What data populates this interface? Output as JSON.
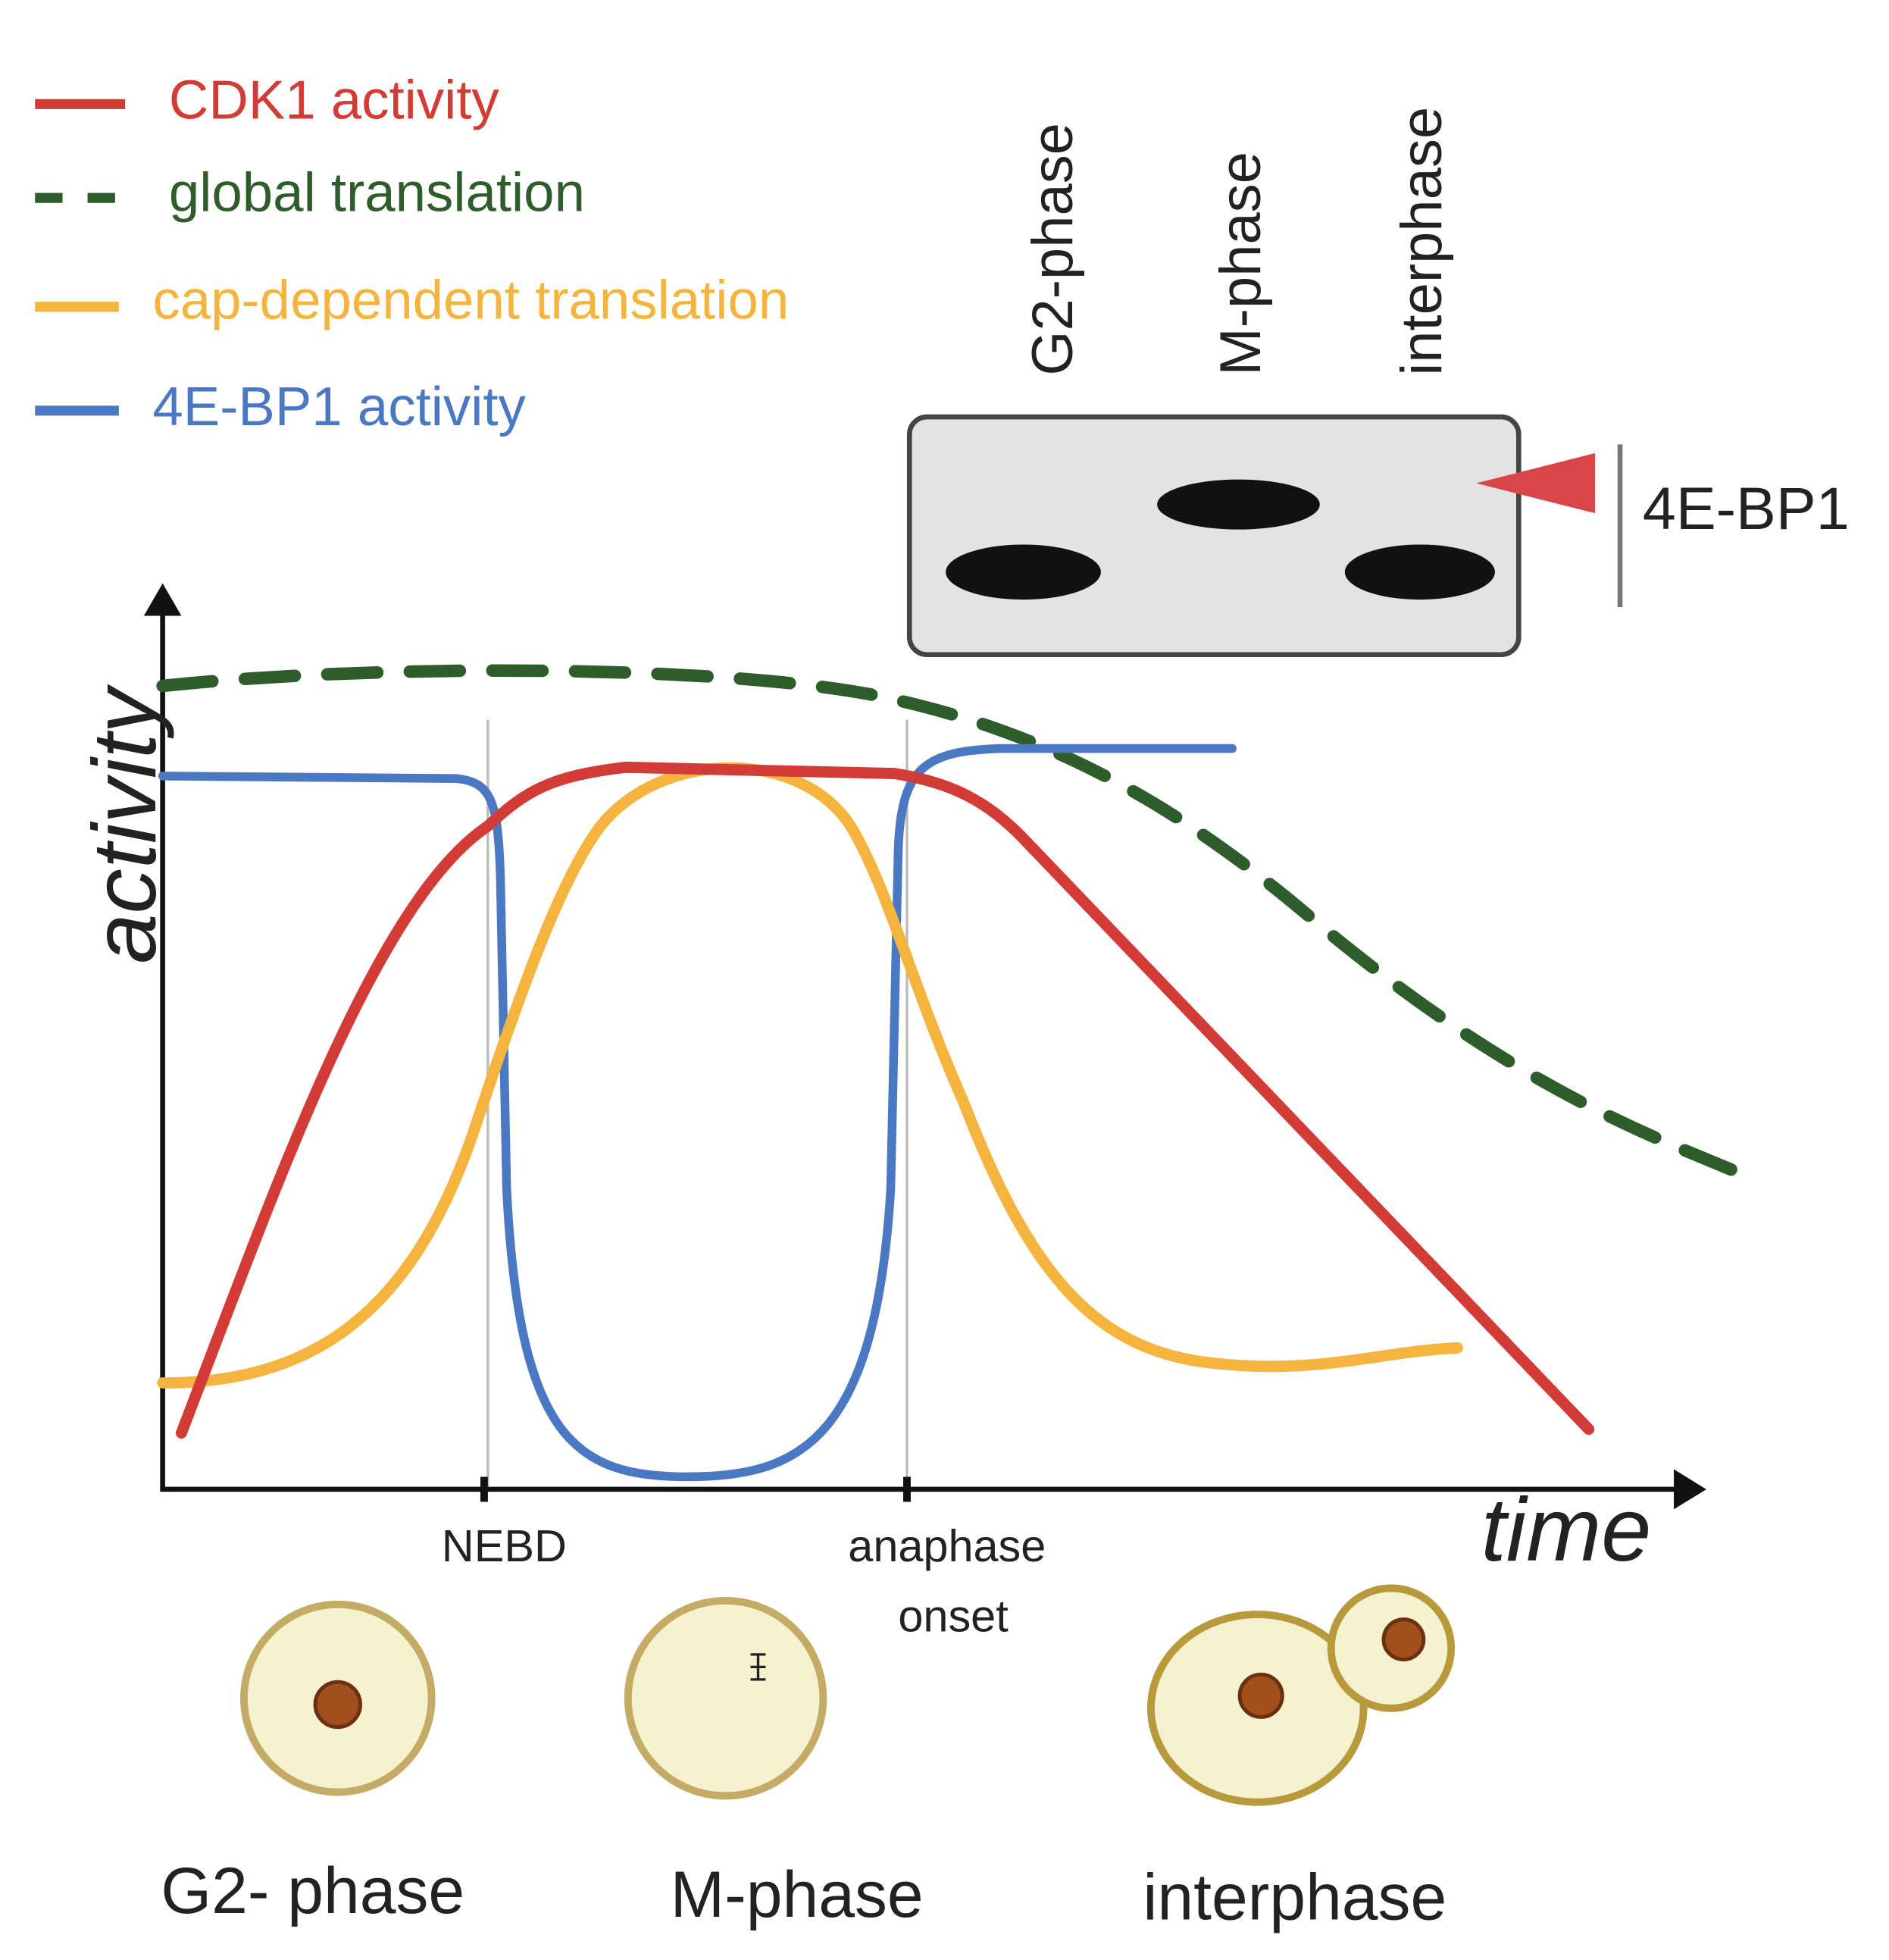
{
  "legend": [
    {
      "label": "CDK1 activity",
      "color": "#d23b36"
    },
    {
      "label": "global translation",
      "color": "#2f5c2b"
    },
    {
      "label": "cap-dependent translation",
      "color": "#f4b43e"
    },
    {
      "label": "4E-BP1 activity",
      "color": "#4a78c2"
    }
  ],
  "blot": {
    "lanes": [
      "G2-phase",
      "M-phase",
      "interphase"
    ],
    "label": "4E-BP1"
  },
  "axes": {
    "y_label": "activity",
    "x_label": "time",
    "x_markers": [
      "NEBD",
      [
        "anaphase",
        "onset"
      ]
    ]
  },
  "cells": [
    "G2- phase",
    "M-phase",
    "interphase"
  ]
}
